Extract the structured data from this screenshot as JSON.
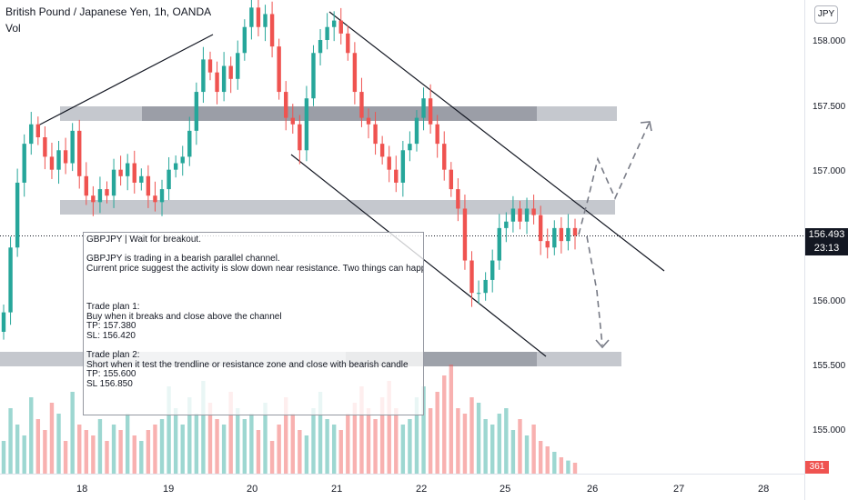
{
  "header": {
    "symbol_title": "British Pound / Japanese Yen, 1h, OANDA",
    "volume_label": "Vol",
    "currency_badge": "JPY"
  },
  "price_axis": {
    "ticks": [
      "158.000",
      "157.500",
      "157.000",
      "156.000",
      "155.500",
      "155.000"
    ],
    "last_price": "156.493",
    "countdown": "23:13",
    "volume_value": "361"
  },
  "time_axis": {
    "ticks": [
      "18",
      "19",
      "20",
      "21",
      "22",
      "25",
      "26",
      "27",
      "28"
    ]
  },
  "note": {
    "line1": "GBPJPY | Wait for breakout.",
    "line2": "GBPJPY is trading in a bearish parallel channel.",
    "line3": "Current price suggest the activity is slow down near resistance. Two things can happen now!!",
    "plan1_title": "Trade plan 1:",
    "plan1_action": "Buy when it breaks and close above the channel",
    "plan1_tp": "TP: 157.380",
    "plan1_sl": "SL: 156.420",
    "plan2_title": "Trade plan 2:",
    "plan2_action": "Short when it test the trendline or resistance zone and close with bearish candle",
    "plan2_tp": "TP: 155.600",
    "plan2_sl": "SL 156.850"
  },
  "colors": {
    "up": "#26a69a",
    "down": "#ef5350",
    "zone": "#b2b5be",
    "zone_dark": "#787b86",
    "line": "#131722",
    "projection": "#787b86"
  },
  "chart_data": {
    "type": "candlestick",
    "symbol": "GBPJPY",
    "timeframe": "1h",
    "ylim": [
      154.55,
      158.3
    ],
    "price_series": [
      155.9,
      156.4,
      156.9,
      157.2,
      157.35,
      157.25,
      157.1,
      157.0,
      157.15,
      157.05,
      157.3,
      156.95,
      156.8,
      156.75,
      156.85,
      156.8,
      157.0,
      156.95,
      157.05,
      156.9,
      156.95,
      156.8,
      156.75,
      156.85,
      157.0,
      157.05,
      157.1,
      157.3,
      157.6,
      157.85,
      157.75,
      157.6,
      157.8,
      157.7,
      157.9,
      158.1,
      158.25,
      158.1,
      158.2,
      157.95,
      157.6,
      157.4,
      157.35,
      157.15,
      157.55,
      157.9,
      158.0,
      158.1,
      158.15,
      158.05,
      157.9,
      157.6,
      157.4,
      157.35,
      157.2,
      157.1,
      157.0,
      156.9,
      157.15,
      157.2,
      157.4,
      157.55,
      157.35,
      157.2,
      157.0,
      156.85,
      156.7,
      156.3,
      156.05,
      156.05,
      156.15,
      156.3,
      156.55,
      156.6,
      156.7,
      156.6,
      156.7,
      156.65,
      156.45,
      156.4,
      156.55,
      156.45,
      156.55,
      156.493
    ],
    "volume_series": [
      30,
      60,
      45,
      35,
      70,
      50,
      40,
      65,
      55,
      30,
      75,
      45,
      40,
      35,
      50,
      30,
      45,
      40,
      55,
      35,
      30,
      40,
      45,
      50,
      80,
      60,
      45,
      70,
      55,
      85,
      65,
      50,
      45,
      75,
      60,
      50,
      55,
      40,
      65,
      30,
      45,
      70,
      55,
      40,
      35,
      60,
      75,
      50,
      45,
      40,
      55,
      65,
      80,
      60,
      50,
      70,
      85,
      60,
      45,
      50,
      70,
      80,
      60,
      75,
      90,
      100,
      60,
      55,
      70,
      65,
      50,
      45,
      55,
      60,
      40,
      50,
      35,
      45,
      30,
      25,
      20,
      15,
      12,
      10
    ],
    "resistance_zones": [
      [
        157.42,
        157.55
      ],
      [
        156.7,
        156.82
      ],
      [
        155.5,
        155.62
      ]
    ]
  }
}
